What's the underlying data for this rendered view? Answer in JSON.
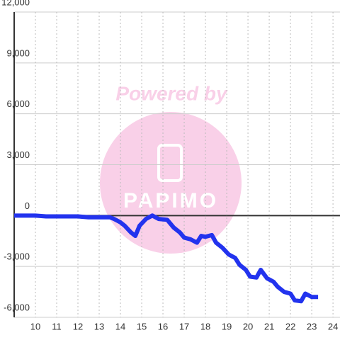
{
  "chart_data": {
    "type": "line",
    "watermark": "Powered by",
    "logo": "PAPIMO",
    "x": [
      9,
      9.5,
      10,
      10.5,
      11,
      11.5,
      12,
      12.5,
      13,
      13.5,
      13.7,
      14,
      14.2,
      14.5,
      14.7,
      14.9,
      15.2,
      15.5,
      15.8,
      16.2,
      16.5,
      16.8,
      17,
      17.3,
      17.6,
      17.8,
      18,
      18.3,
      18.5,
      18.8,
      19.1,
      19.4,
      19.6,
      19.9,
      20.1,
      20.4,
      20.6,
      20.9,
      21.2,
      21.4,
      21.7,
      22,
      22.2,
      22.5,
      22.7,
      23,
      23.3
    ],
    "series": [
      {
        "color": "#2233ee",
        "values": [
          0,
          0,
          0,
          -50,
          -50,
          -50,
          -50,
          -100,
          -100,
          -100,
          -200,
          -400,
          -600,
          -1000,
          -1200,
          -600,
          -200,
          0,
          -200,
          -250,
          -700,
          -1000,
          -1300,
          -1400,
          -1600,
          -1200,
          -1250,
          -1150,
          -1600,
          -1900,
          -2300,
          -2500,
          -2900,
          -3200,
          -3600,
          -3650,
          -3200,
          -3700,
          -3900,
          -4200,
          -4500,
          -4600,
          -5000,
          -5050,
          -4600,
          -4800,
          -4800
        ]
      }
    ],
    "xlim": [
      9,
      24.33
    ],
    "xticks": [
      10,
      11,
      12,
      13,
      14,
      15,
      16,
      17,
      18,
      19,
      20,
      21,
      22,
      23,
      24
    ],
    "ylim": [
      -6000,
      12000
    ],
    "yticks": [
      {
        "value": -6000,
        "label": "-6,000"
      },
      {
        "value": -3000,
        "label": "-3,000"
      },
      0,
      {
        "value": 3000,
        "label": "3,000"
      },
      {
        "value": 6000,
        "label": "6,000"
      },
      {
        "value": 9000,
        "label": "9,000"
      },
      {
        "value": 12000,
        "label": "12,000"
      }
    ],
    "grid": true
  }
}
